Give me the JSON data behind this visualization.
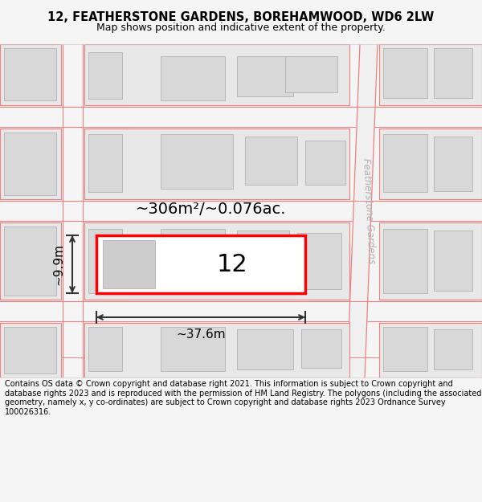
{
  "title_line1": "12, FEATHERSTONE GARDENS, BOREHAMWOOD, WD6 2LW",
  "title_line2": "Map shows position and indicative extent of the property.",
  "footer_text": "Contains OS data © Crown copyright and database right 2021. This information is subject to Crown copyright and database rights 2023 and is reproduced with the permission of HM Land Registry. The polygons (including the associated geometry, namely x, y co-ordinates) are subject to Crown copyright and database rights 2023 Ordnance Survey 100026316.",
  "area_label": "~306m²/~0.076ac.",
  "width_label": "~37.6m",
  "height_label": "~9.9m",
  "plot_number": "12",
  "bg_color": "#f5f5f5",
  "map_bg": "#ffffff",
  "plot_fill": "#ffffff",
  "plot_border": "#ff0000",
  "building_fill": "#d8d8d8",
  "road_line": "#f08080",
  "text_color": "#000000",
  "dim_color": "#333333",
  "fg_label": "Featherstone Gardens"
}
